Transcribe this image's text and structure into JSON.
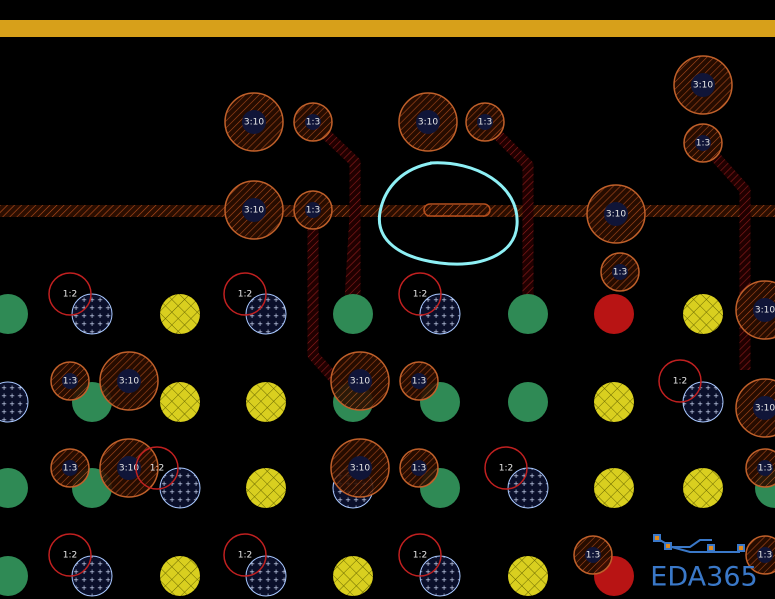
{
  "pad_labels": [
    "3:10",
    "1:3",
    "3:10",
    "1:3",
    "3:10",
    "1:3",
    "3:10",
    "1:3",
    "3:10",
    "1:3",
    "1:2",
    "1:2",
    "1:2",
    "3:10",
    "1:3",
    "3:10",
    "3:10",
    "1:3",
    "1:2",
    "3:10",
    "1:3",
    "3:10",
    "1:2",
    "3:10",
    "1:3",
    "1:2",
    "1:3",
    "1:2",
    "1:2",
    "1:2",
    "1:3",
    "1:3"
  ],
  "logo": "EDA365"
}
